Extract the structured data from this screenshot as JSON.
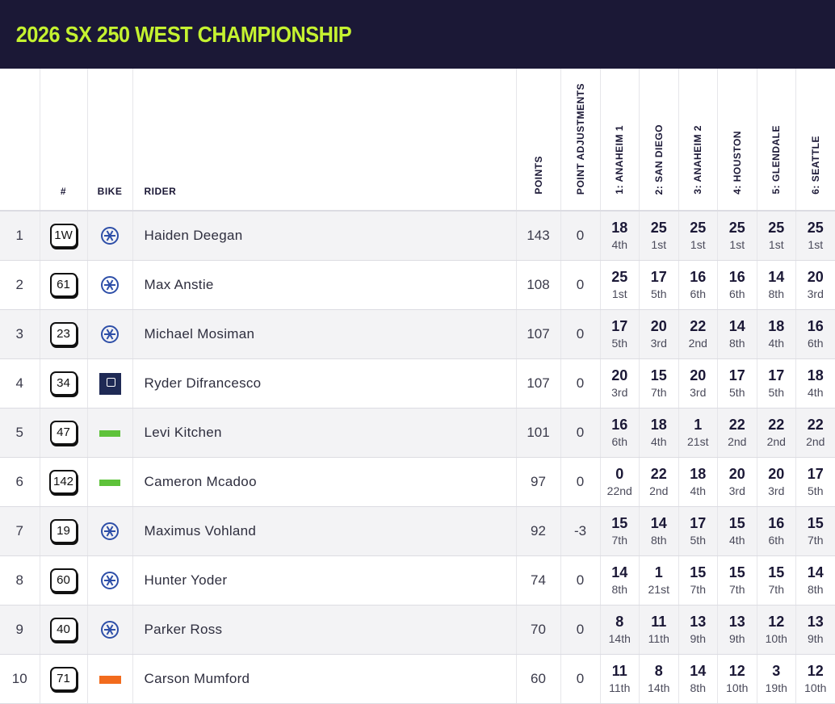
{
  "title": "2026 SX 250 WEST CHAMPIONSHIP",
  "columns": {
    "number": "#",
    "bike": "BIKE",
    "rider": "RIDER",
    "points": "POINTS",
    "adjustments": "POINT ADJUSTMENTS",
    "races": [
      "1: ANAHEIM 1",
      "2: SAN DIEGO",
      "3: ANAHEIM 2",
      "4: HOUSTON",
      "5: GLENDALE",
      "6: SEATTLE"
    ]
  },
  "rows": [
    {
      "pos": "1",
      "number": "1W",
      "bike": "yamaha-icon",
      "rider": "Haiden Deegan",
      "points": "143",
      "adj": "0",
      "races": [
        {
          "p": "18",
          "place": "4th"
        },
        {
          "p": "25",
          "place": "1st"
        },
        {
          "p": "25",
          "place": "1st"
        },
        {
          "p": "25",
          "place": "1st"
        },
        {
          "p": "25",
          "place": "1st"
        },
        {
          "p": "25",
          "place": "1st"
        }
      ]
    },
    {
      "pos": "2",
      "number": "61",
      "bike": "yamaha-icon",
      "rider": "Max Anstie",
      "points": "108",
      "adj": "0",
      "races": [
        {
          "p": "25",
          "place": "1st"
        },
        {
          "p": "17",
          "place": "5th"
        },
        {
          "p": "16",
          "place": "6th"
        },
        {
          "p": "16",
          "place": "6th"
        },
        {
          "p": "14",
          "place": "8th"
        },
        {
          "p": "20",
          "place": "3rd"
        }
      ]
    },
    {
      "pos": "3",
      "number": "23",
      "bike": "yamaha-icon",
      "rider": "Michael Mosiman",
      "points": "107",
      "adj": "0",
      "races": [
        {
          "p": "17",
          "place": "5th"
        },
        {
          "p": "20",
          "place": "3rd"
        },
        {
          "p": "22",
          "place": "2nd"
        },
        {
          "p": "14",
          "place": "8th"
        },
        {
          "p": "18",
          "place": "4th"
        },
        {
          "p": "16",
          "place": "6th"
        }
      ]
    },
    {
      "pos": "4",
      "number": "34",
      "bike": "husqvarna-icon",
      "rider": "Ryder Difrancesco",
      "points": "107",
      "adj": "0",
      "races": [
        {
          "p": "20",
          "place": "3rd"
        },
        {
          "p": "15",
          "place": "7th"
        },
        {
          "p": "20",
          "place": "3rd"
        },
        {
          "p": "17",
          "place": "5th"
        },
        {
          "p": "17",
          "place": "5th"
        },
        {
          "p": "18",
          "place": "4th"
        }
      ]
    },
    {
      "pos": "5",
      "number": "47",
      "bike": "kawasaki-icon",
      "rider": "Levi Kitchen",
      "points": "101",
      "adj": "0",
      "races": [
        {
          "p": "16",
          "place": "6th"
        },
        {
          "p": "18",
          "place": "4th"
        },
        {
          "p": "1",
          "place": "21st"
        },
        {
          "p": "22",
          "place": "2nd"
        },
        {
          "p": "22",
          "place": "2nd"
        },
        {
          "p": "22",
          "place": "2nd"
        }
      ]
    },
    {
      "pos": "6",
      "number": "142",
      "bike": "kawasaki-icon",
      "rider": "Cameron Mcadoo",
      "points": "97",
      "adj": "0",
      "races": [
        {
          "p": "0",
          "place": "22nd"
        },
        {
          "p": "22",
          "place": "2nd"
        },
        {
          "p": "18",
          "place": "4th"
        },
        {
          "p": "20",
          "place": "3rd"
        },
        {
          "p": "20",
          "place": "3rd"
        },
        {
          "p": "17",
          "place": "5th"
        }
      ]
    },
    {
      "pos": "7",
      "number": "19",
      "bike": "yamaha-icon",
      "rider": "Maximus Vohland",
      "points": "92",
      "adj": "-3",
      "races": [
        {
          "p": "15",
          "place": "7th"
        },
        {
          "p": "14",
          "place": "8th"
        },
        {
          "p": "17",
          "place": "5th"
        },
        {
          "p": "15",
          "place": "4th"
        },
        {
          "p": "16",
          "place": "6th"
        },
        {
          "p": "15",
          "place": "7th"
        }
      ]
    },
    {
      "pos": "8",
      "number": "60",
      "bike": "yamaha-icon",
      "rider": "Hunter Yoder",
      "points": "74",
      "adj": "0",
      "races": [
        {
          "p": "14",
          "place": "8th"
        },
        {
          "p": "1",
          "place": "21st"
        },
        {
          "p": "15",
          "place": "7th"
        },
        {
          "p": "15",
          "place": "7th"
        },
        {
          "p": "15",
          "place": "7th"
        },
        {
          "p": "14",
          "place": "8th"
        }
      ]
    },
    {
      "pos": "9",
      "number": "40",
      "bike": "yamaha-icon",
      "rider": "Parker Ross",
      "points": "70",
      "adj": "0",
      "races": [
        {
          "p": "8",
          "place": "14th"
        },
        {
          "p": "11",
          "place": "11th"
        },
        {
          "p": "13",
          "place": "9th"
        },
        {
          "p": "13",
          "place": "9th"
        },
        {
          "p": "12",
          "place": "10th"
        },
        {
          "p": "13",
          "place": "9th"
        }
      ]
    },
    {
      "pos": "10",
      "number": "71",
      "bike": "ktm-icon",
      "rider": "Carson Mumford",
      "points": "60",
      "adj": "0",
      "races": [
        {
          "p": "11",
          "place": "11th"
        },
        {
          "p": "8",
          "place": "14th"
        },
        {
          "p": "14",
          "place": "8th"
        },
        {
          "p": "12",
          "place": "10th"
        },
        {
          "p": "3",
          "place": "19th"
        },
        {
          "p": "12",
          "place": "10th"
        }
      ]
    }
  ]
}
